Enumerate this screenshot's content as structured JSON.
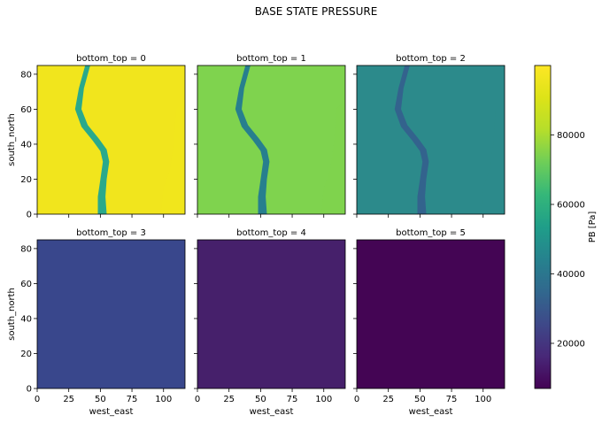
{
  "figure": {
    "title": "BASE STATE PRESSURE"
  },
  "chart_data": {
    "type": "heatmap",
    "title": "BASE STATE PRESSURE",
    "facet_dim": "bottom_top",
    "xlabel": "west_east",
    "ylabel": "south_north",
    "xlim": [
      0,
      117
    ],
    "ylim": [
      0,
      85
    ],
    "xticks": [
      "0",
      "25",
      "50",
      "75",
      "100"
    ],
    "xtick_values": [
      0,
      25,
      50,
      75,
      100
    ],
    "yticks": [
      "0",
      "20",
      "40",
      "60",
      "80"
    ],
    "ytick_values": [
      0,
      20,
      40,
      60,
      80
    ],
    "colormap": "viridis",
    "panels": [
      {
        "title": "bottom_top = 0",
        "base_color": "#f1e51d",
        "trench_color": "#2aa98b",
        "has_terrain": true
      },
      {
        "title": "bottom_top = 1",
        "base_color": "#7fd34e",
        "trench_color": "#277f8e",
        "has_terrain": true
      },
      {
        "title": "bottom_top = 2",
        "base_color": "#2c8a8b",
        "trench_color": "#33638d",
        "has_terrain": true
      },
      {
        "title": "bottom_top = 3",
        "base_color": "#39478c",
        "trench_color": "#39478c",
        "has_terrain": false
      },
      {
        "title": "bottom_top = 4",
        "base_color": "#46206b",
        "trench_color": "#46206b",
        "has_terrain": false
      },
      {
        "title": "bottom_top = 5",
        "base_color": "#440554",
        "trench_color": "#440554",
        "has_terrain": false
      }
    ],
    "colorbar": {
      "label": "PB [Pa]",
      "range": [
        7000,
        100000
      ],
      "ticks": [
        "20000",
        "40000",
        "60000",
        "80000"
      ],
      "tick_values": [
        20000,
        40000,
        60000,
        80000
      ]
    }
  }
}
